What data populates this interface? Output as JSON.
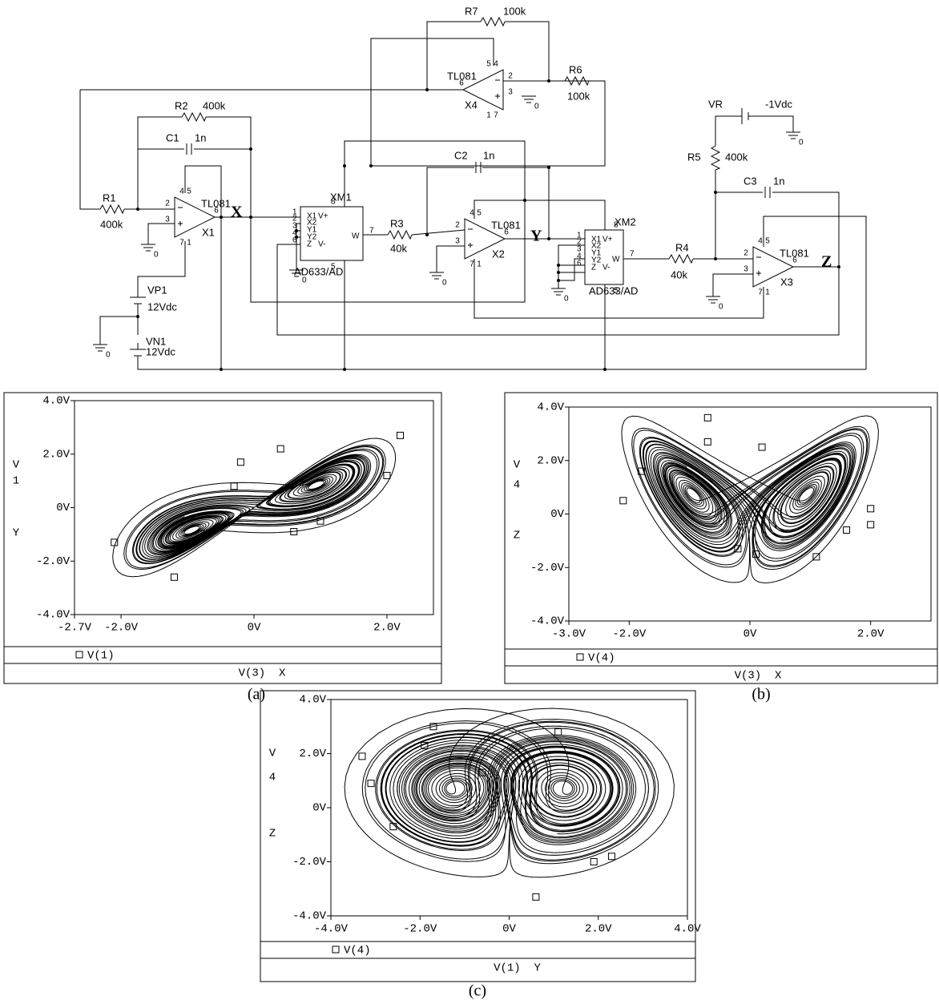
{
  "circuit": {
    "resistors": [
      {
        "name": "R7",
        "value": "100k"
      },
      {
        "name": "R6",
        "value": "100k"
      },
      {
        "name": "R2",
        "value": "400k"
      },
      {
        "name": "R1",
        "value": "400k"
      },
      {
        "name": "R3",
        "value": "40k"
      },
      {
        "name": "R4",
        "value": "40k"
      },
      {
        "name": "R5",
        "value": "400k"
      }
    ],
    "capacitors": [
      {
        "name": "C1",
        "value": "1n"
      },
      {
        "name": "C2",
        "value": "1n"
      },
      {
        "name": "C3",
        "value": "1n"
      }
    ],
    "opamps": [
      {
        "model": "TL081",
        "name": "X4",
        "pins": [
          "2",
          "3",
          "6",
          "4",
          "5",
          "7",
          "1"
        ]
      },
      {
        "model": "TL081",
        "name": "X1",
        "pins": [
          "2",
          "3",
          "6",
          "4",
          "5",
          "7",
          "1"
        ]
      },
      {
        "model": "TL081",
        "name": "X2",
        "pins": [
          "2",
          "3",
          "6",
          "4",
          "5",
          "7",
          "1"
        ]
      },
      {
        "model": "TL081",
        "name": "X3",
        "pins": [
          "2",
          "3",
          "6",
          "4",
          "5",
          "7",
          "1"
        ]
      }
    ],
    "multipliers": [
      {
        "name": "XM1",
        "model": "AD633/AD",
        "inputs": [
          "X1",
          "X2",
          "Y1",
          "Y2",
          "Z"
        ],
        "input_pins": [
          "1",
          "2",
          "3",
          "4",
          "6"
        ],
        "output": "W",
        "output_pin": "7",
        "supplies": [
          "V+",
          "V-"
        ],
        "supply_pins": [
          "8",
          "5"
        ]
      },
      {
        "name": "XM2",
        "model": "AD633/AD",
        "inputs": [
          "X1",
          "X2",
          "Y1",
          "Y2",
          "Z"
        ],
        "input_pins": [
          "1",
          "2",
          "3",
          "4",
          "6"
        ],
        "output": "W",
        "output_pin": "7",
        "supplies": [
          "V+",
          "V-"
        ],
        "supply_pins": [
          "8",
          "5"
        ]
      }
    ],
    "sources": [
      {
        "name": "VR",
        "value": "-1Vdc"
      },
      {
        "name": "VP1",
        "value": "12Vdc"
      },
      {
        "name": "VN1",
        "value": "12Vdc"
      }
    ],
    "nodes": [
      "X",
      "Y",
      "Z"
    ],
    "ground": "0"
  },
  "chart_data": [
    {
      "type": "scatter",
      "caption": "(a)",
      "x_label": "V(3)  X",
      "y_label": [
        "V",
        "1",
        "Y"
      ],
      "xlim": [
        -2.7,
        2.7
      ],
      "ylim": [
        -4,
        4
      ],
      "xticks": [
        {
          "value": -2.7,
          "label": "-2.7V"
        },
        {
          "value": -2.0,
          "label": "-2.0V"
        },
        {
          "value": 0,
          "label": "0V"
        },
        {
          "value": 2.0,
          "label": "2.0V"
        }
      ],
      "yticks": [
        {
          "value": -4,
          "label": "-4.0V"
        },
        {
          "value": -2,
          "label": "-2.0V"
        },
        {
          "value": 0,
          "label": "0V"
        },
        {
          "value": 2,
          "label": "2.0V"
        },
        {
          "value": 4,
          "label": "4.0V"
        }
      ],
      "series": [
        {
          "name": "V(1)",
          "color": "#000000",
          "marker": "square",
          "x": [
            -2.1,
            -1.2,
            -0.2,
            0.4,
            2.2,
            2.0,
            0.6,
            1.0,
            -0.3
          ],
          "y": [
            -1.3,
            -2.6,
            1.7,
            2.2,
            2.7,
            1.2,
            -0.9,
            -0.5,
            0.8
          ]
        }
      ]
    },
    {
      "type": "scatter",
      "caption": "(b)",
      "x_label": "V(3)  X",
      "y_label": [
        "V",
        "4",
        "Z"
      ],
      "xlim": [
        -3.0,
        3.0
      ],
      "ylim": [
        -4,
        4
      ],
      "xticks": [
        {
          "value": -3.0,
          "label": "-3.0V"
        },
        {
          "value": -2.0,
          "label": "-2.0V"
        },
        {
          "value": 0,
          "label": "0V"
        },
        {
          "value": 2.0,
          "label": "2.0V"
        }
      ],
      "yticks": [
        {
          "value": -4,
          "label": "-4.0V"
        },
        {
          "value": -2,
          "label": "-2.0V"
        },
        {
          "value": 0,
          "label": "0V"
        },
        {
          "value": 2,
          "label": "2.0V"
        },
        {
          "value": 4,
          "label": "4.0V"
        }
      ],
      "series": [
        {
          "name": "V(4)",
          "color": "#000000",
          "marker": "square",
          "x": [
            -0.7,
            -0.7,
            0.2,
            -1.8,
            2.0,
            2.0,
            1.6,
            0.1,
            -0.2,
            1.1,
            -2.1
          ],
          "y": [
            3.6,
            2.7,
            2.5,
            1.6,
            0.2,
            -0.4,
            -0.6,
            -1.5,
            -1.3,
            -1.6,
            0.5
          ]
        }
      ]
    },
    {
      "type": "scatter",
      "caption": "(c)",
      "x_label": "V(1)  Y",
      "y_label": [
        "V",
        "4",
        "Z"
      ],
      "xlim": [
        -4.0,
        4.0
      ],
      "ylim": [
        -4,
        4
      ],
      "xticks": [
        {
          "value": -4.0,
          "label": "-4.0V"
        },
        {
          "value": -2.0,
          "label": "-2.0V"
        },
        {
          "value": 0,
          "label": "0V"
        },
        {
          "value": 2.0,
          "label": "2.0V"
        },
        {
          "value": 4.0,
          "label": "4.0V"
        }
      ],
      "yticks": [
        {
          "value": -4,
          "label": "-4.0V"
        },
        {
          "value": -2,
          "label": "-2.0V"
        },
        {
          "value": 0,
          "label": "0V"
        },
        {
          "value": 2,
          "label": "2.0V"
        },
        {
          "value": 4,
          "label": "4.0V"
        }
      ],
      "series": [
        {
          "name": "V(4)",
          "color": "#000000",
          "marker": "square",
          "x": [
            -3.3,
            -1.7,
            -1.9,
            -3.1,
            -2.6,
            1.1,
            -0.6,
            0.6,
            2.3,
            1.9
          ],
          "y": [
            1.9,
            3.0,
            2.3,
            0.9,
            -0.7,
            2.8,
            1.3,
            -3.3,
            -1.8,
            -2.0
          ]
        }
      ]
    }
  ]
}
